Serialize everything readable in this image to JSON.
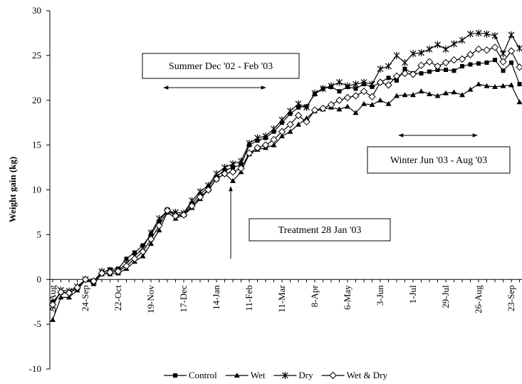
{
  "chart_data": {
    "type": "line",
    "y_label": "Weight gain (kg)",
    "categories": [
      "27-Aug",
      null,
      null,
      null,
      "24-Sep",
      null,
      null,
      null,
      "22-Oct",
      null,
      null,
      null,
      "19-Nov",
      null,
      null,
      null,
      "17-Dec",
      null,
      null,
      null,
      "14-Jan",
      null,
      null,
      null,
      "11-Feb",
      null,
      null,
      null,
      "11-Mar",
      null,
      null,
      null,
      "8-Apr",
      null,
      null,
      null,
      "6-May",
      null,
      null,
      null,
      "3-Jun",
      null,
      null,
      null,
      "1-Jul",
      null,
      null,
      null,
      "29-Jul",
      null,
      null,
      null,
      "26-Aug",
      null,
      null,
      null,
      "23-Sep",
      null
    ],
    "series": [
      {
        "name": "Control",
        "color": "#000000",
        "marker": "square",
        "values": [
          -2.5,
          -1.5,
          -1.5,
          -1,
          0,
          -0.3,
          0.8,
          1.1,
          1.2,
          2.3,
          3,
          3.8,
          5,
          6.5,
          7.8,
          7.2,
          7.3,
          8.5,
          9.5,
          10.3,
          11.5,
          12.2,
          12.5,
          12.8,
          15,
          15.5,
          15.8,
          16.5,
          17.5,
          18.5,
          19.2,
          19.3,
          20.7,
          21.3,
          21.5,
          21,
          21.5,
          21.3,
          21.8,
          21.5,
          22,
          22.5,
          22.2,
          23.5,
          23,
          23,
          23.2,
          23.4,
          23.4,
          23.3,
          23.8,
          24,
          24.1,
          24.2,
          24.5,
          23.3,
          24.2,
          21.8
        ]
      },
      {
        "name": "Wet",
        "color": "#000000",
        "marker": "triangle",
        "values": [
          -4.5,
          -2,
          -2,
          -1.2,
          0,
          -0.5,
          0.6,
          0.6,
          0.7,
          1.2,
          2,
          2.6,
          4,
          5.5,
          7.5,
          6.8,
          7.2,
          8,
          9,
          10,
          11.2,
          11.8,
          11,
          12,
          14,
          14.5,
          14.7,
          15,
          16,
          16.5,
          17.3,
          18,
          18.8,
          19,
          19.2,
          19,
          19.3,
          18.6,
          19.6,
          19.5,
          20,
          19.6,
          20.5,
          20.6,
          20.6,
          21,
          20.7,
          20.5,
          20.8,
          20.9,
          20.6,
          21.2,
          21.8,
          21.6,
          21.5,
          21.6,
          21.7,
          19.8
        ]
      },
      {
        "name": "Dry",
        "color": "#000000",
        "marker": "star",
        "values": [
          -3,
          -1.2,
          -1.3,
          -0.8,
          0,
          -0.2,
          0.9,
          1.0,
          1.0,
          1.8,
          2.6,
          3.5,
          5.2,
          6.8,
          7.6,
          7.5,
          7.4,
          8.8,
          9.8,
          10.5,
          11.8,
          12.5,
          12.9,
          13.2,
          15.2,
          15.8,
          16,
          16.8,
          17.8,
          18.8,
          19.6,
          19.2,
          20.8,
          21.3,
          21.6,
          22,
          21.6,
          21.8,
          22,
          21.8,
          23.5,
          23.8,
          25,
          24.2,
          25.2,
          25.3,
          25.7,
          26.2,
          25.7,
          26.3,
          26.7,
          27.4,
          27.5,
          27.4,
          27.2,
          25.2,
          27.3,
          25.8
        ]
      },
      {
        "name": "Wet & Dry",
        "color": "#000000",
        "marker": "diamond",
        "values": [
          -2.8,
          -1.4,
          -1.5,
          -0.9,
          0,
          -0.2,
          0.7,
          0.8,
          0.9,
          1.5,
          2.3,
          3.1,
          4.5,
          6,
          7.7,
          7.1,
          7.2,
          8.2,
          9.2,
          10,
          11.2,
          11.8,
          12,
          12.4,
          14.1,
          14.7,
          15,
          15.6,
          16.5,
          17.3,
          18.3,
          17.6,
          18.9,
          19.1,
          19.5,
          20,
          20.3,
          20.5,
          21,
          20.4,
          22,
          21.7,
          22.7,
          23,
          22.9,
          23.9,
          24.3,
          23.8,
          24.2,
          24.5,
          24.6,
          25.1,
          25.7,
          25.6,
          25.9,
          24.3,
          25.5,
          23.7
        ]
      }
    ],
    "ylim": [
      -10,
      30
    ],
    "yticks": [
      -10,
      -5,
      0,
      5,
      10,
      15,
      20,
      25,
      30
    ],
    "legend": "bottom",
    "annotations": [
      "Summer Dec '02 - Feb '03",
      "Winter Jun '03 - Aug '03",
      "Treatment 28 Jan '03"
    ]
  }
}
